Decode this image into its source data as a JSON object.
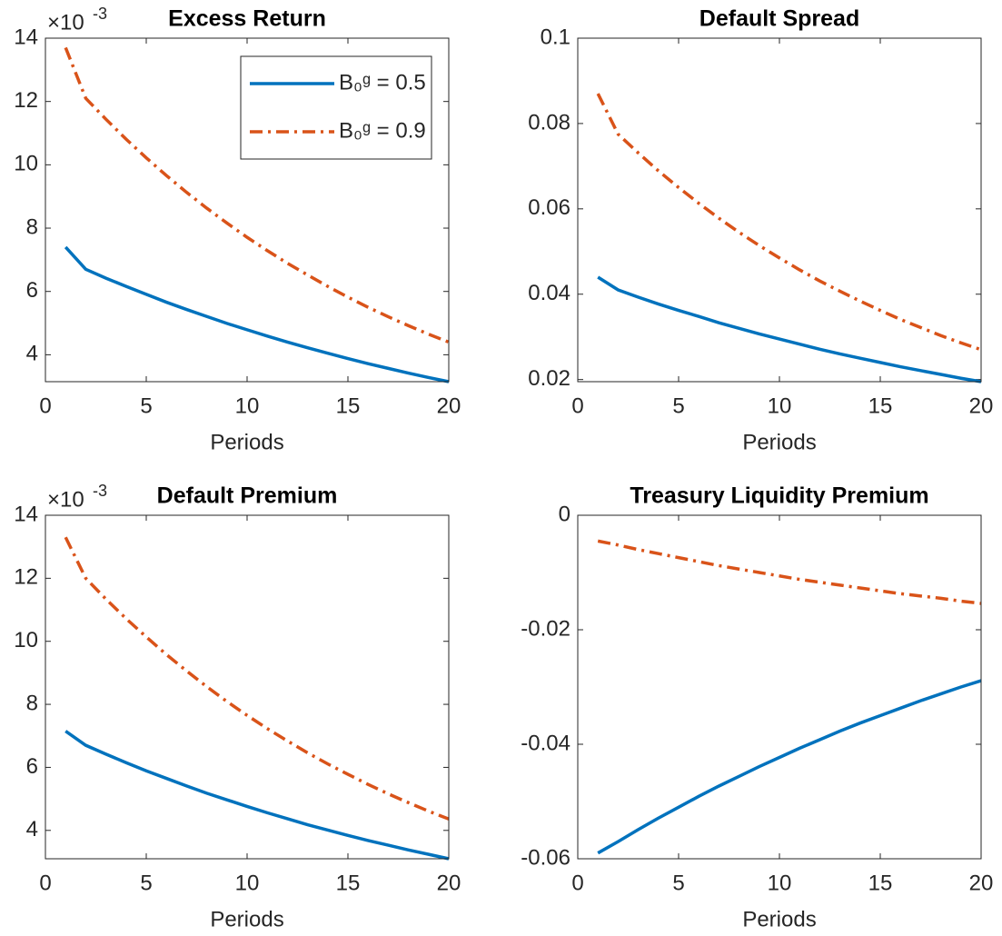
{
  "chart_data": [
    {
      "type": "line",
      "title": "Excess Return",
      "x_label": "Periods",
      "y_scale_base": "×10",
      "y_scale_power": "-3",
      "x": [
        1,
        2,
        3,
        4,
        5,
        6,
        7,
        8,
        9,
        10,
        11,
        12,
        13,
        14,
        15,
        16,
        17,
        18,
        19,
        20
      ],
      "xlim": [
        0,
        20
      ],
      "xticks": [
        0,
        5,
        10,
        15,
        20
      ],
      "ylim": [
        3.15,
        14
      ],
      "yticks": [
        4,
        6,
        8,
        10,
        12,
        14
      ],
      "legend": "northeast",
      "series": [
        {
          "name": "B₀ᵍ = 0.5",
          "color": "#0072bd",
          "line_style": "solid",
          "values": [
            7.4,
            6.7,
            6.42,
            6.16,
            5.91,
            5.66,
            5.43,
            5.21,
            4.99,
            4.79,
            4.59,
            4.4,
            4.22,
            4.05,
            3.88,
            3.72,
            3.57,
            3.42,
            3.28,
            3.15
          ]
        },
        {
          "name": "B₀ᵍ = 0.9",
          "color": "#d95319",
          "line_style": "dashdot",
          "values": [
            13.7,
            12.1,
            11.44,
            10.81,
            10.22,
            9.66,
            9.13,
            8.63,
            8.16,
            7.71,
            7.29,
            6.89,
            6.52,
            6.16,
            5.82,
            5.5,
            5.2,
            4.92,
            4.65,
            4.4
          ]
        }
      ]
    },
    {
      "type": "line",
      "title": "Default Spread",
      "x_label": "Periods",
      "x": [
        1,
        2,
        3,
        4,
        5,
        6,
        7,
        8,
        9,
        10,
        11,
        12,
        13,
        14,
        15,
        16,
        17,
        18,
        19,
        20
      ],
      "xlim": [
        0,
        20
      ],
      "xticks": [
        0,
        5,
        10,
        15,
        20
      ],
      "ylim": [
        0.0195,
        0.1
      ],
      "yticks": [
        0.02,
        0.04,
        0.06,
        0.08,
        0.1
      ],
      "series": [
        {
          "color": "#0072bd",
          "line_style": "solid",
          "values": [
            0.044,
            0.041,
            0.0393,
            0.0377,
            0.0362,
            0.0348,
            0.0333,
            0.032,
            0.0307,
            0.0295,
            0.0283,
            0.0271,
            0.026,
            0.025,
            0.024,
            0.023,
            0.0221,
            0.0212,
            0.0203,
            0.0195
          ]
        },
        {
          "color": "#d95319",
          "line_style": "dashdot",
          "values": [
            0.087,
            0.0775,
            0.0731,
            0.0689,
            0.065,
            0.0613,
            0.0578,
            0.0545,
            0.0514,
            0.0485,
            0.0457,
            0.0431,
            0.0407,
            0.0384,
            0.0362,
            0.0341,
            0.0322,
            0.0303,
            0.0286,
            0.027
          ]
        }
      ]
    },
    {
      "type": "line",
      "title": "Default Premium",
      "x_label": "Periods",
      "y_scale_base": "×10",
      "y_scale_power": "-3",
      "x": [
        1,
        2,
        3,
        4,
        5,
        6,
        7,
        8,
        9,
        10,
        11,
        12,
        13,
        14,
        15,
        16,
        17,
        18,
        19,
        20
      ],
      "xlim": [
        0,
        20
      ],
      "xticks": [
        0,
        5,
        10,
        15,
        20
      ],
      "ylim": [
        3.1,
        14
      ],
      "yticks": [
        4,
        6,
        8,
        10,
        12,
        14
      ],
      "series": [
        {
          "color": "#0072bd",
          "line_style": "solid",
          "values": [
            7.15,
            6.7,
            6.42,
            6.15,
            5.89,
            5.65,
            5.41,
            5.18,
            4.97,
            4.76,
            4.56,
            4.37,
            4.18,
            4.01,
            3.84,
            3.68,
            3.53,
            3.38,
            3.24,
            3.1
          ]
        },
        {
          "color": "#d95319",
          "line_style": "dashdot",
          "values": [
            13.3,
            12.0,
            11.34,
            10.72,
            10.14,
            9.58,
            9.06,
            8.56,
            8.09,
            7.65,
            7.23,
            6.84,
            6.46,
            6.11,
            5.78,
            5.46,
            5.16,
            4.88,
            4.61,
            4.36
          ]
        }
      ]
    },
    {
      "type": "line",
      "title": "Treasury Liquidity Premium",
      "x_label": "Periods",
      "x": [
        1,
        2,
        3,
        4,
        5,
        6,
        7,
        8,
        9,
        10,
        11,
        12,
        13,
        14,
        15,
        16,
        17,
        18,
        19,
        20
      ],
      "xlim": [
        0,
        20
      ],
      "xticks": [
        0,
        5,
        10,
        15,
        20
      ],
      "ylim": [
        -0.06,
        0
      ],
      "yticks": [
        -0.06,
        -0.04,
        -0.02,
        0
      ],
      "series": [
        {
          "color": "#0072bd",
          "line_style": "solid",
          "values": [
            -0.059,
            -0.057,
            -0.0549,
            -0.0529,
            -0.051,
            -0.0491,
            -0.0473,
            -0.0456,
            -0.0439,
            -0.0423,
            -0.0407,
            -0.0392,
            -0.0377,
            -0.0363,
            -0.035,
            -0.0337,
            -0.0324,
            -0.0312,
            -0.03,
            -0.0289
          ]
        },
        {
          "color": "#d95319",
          "line_style": "dashdot",
          "values": [
            -0.0045,
            -0.0052,
            -0.006,
            -0.0067,
            -0.0074,
            -0.0081,
            -0.0088,
            -0.0094,
            -0.01,
            -0.0106,
            -0.0112,
            -0.0117,
            -0.0122,
            -0.0127,
            -0.0132,
            -0.0137,
            -0.0141,
            -0.0145,
            -0.015,
            -0.0154
          ]
        }
      ]
    }
  ]
}
